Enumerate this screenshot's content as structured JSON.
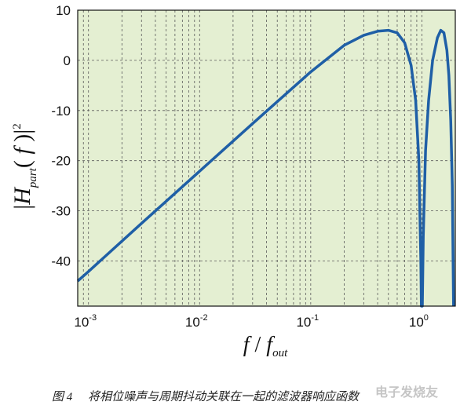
{
  "chart_data": {
    "type": "line",
    "x_scale": "log",
    "xlim": [
      0.0008,
      2.0
    ],
    "ylim": [
      -49,
      10
    ],
    "grid": true,
    "xlabel": "f / f out",
    "ylabel": "|H part ( f )| 2",
    "x_ticks": [
      {
        "base": "10",
        "exp": "-3",
        "value": 0.001
      },
      {
        "base": "10",
        "exp": "-2",
        "value": 0.01
      },
      {
        "base": "10",
        "exp": "-1",
        "value": 0.1
      },
      {
        "base": "10",
        "exp": "0",
        "value": 1.0
      }
    ],
    "y_ticks": [
      10,
      0,
      -10,
      -20,
      -30,
      -40
    ],
    "colors": {
      "line": "#1f5fa6",
      "plot_bg": "#e4efd2",
      "grid": "#5a5a5a"
    },
    "series": [
      {
        "values": [
          {
            "x": 0.0008,
            "y": -44
          },
          {
            "x": 0.001,
            "y": -42.1
          },
          {
            "x": 0.003,
            "y": -32.5
          },
          {
            "x": 0.01,
            "y": -22.1
          },
          {
            "x": 0.03,
            "y": -12.6
          },
          {
            "x": 0.1,
            "y": -2.3
          },
          {
            "x": 0.2,
            "y": 3
          },
          {
            "x": 0.3,
            "y": 5
          },
          {
            "x": 0.4,
            "y": 5.8
          },
          {
            "x": 0.5,
            "y": 6
          },
          {
            "x": 0.6,
            "y": 5.5
          },
          {
            "x": 0.7,
            "y": 3.5
          },
          {
            "x": 0.8,
            "y": -1
          },
          {
            "x": 0.88,
            "y": -8
          },
          {
            "x": 0.94,
            "y": -20
          },
          {
            "x": 0.98,
            "y": -40
          },
          {
            "x": 0.99,
            "y": -49
          },
          {
            "x": 1.01,
            "y": -49
          },
          {
            "x": 1.03,
            "y": -35
          },
          {
            "x": 1.08,
            "y": -18
          },
          {
            "x": 1.15,
            "y": -8
          },
          {
            "x": 1.25,
            "y": 0
          },
          {
            "x": 1.38,
            "y": 4.5
          },
          {
            "x": 1.48,
            "y": 6
          },
          {
            "x": 1.58,
            "y": 5.5
          },
          {
            "x": 1.68,
            "y": 2
          },
          {
            "x": 1.75,
            "y": -3
          },
          {
            "x": 1.82,
            "y": -12
          },
          {
            "x": 1.88,
            "y": -25
          },
          {
            "x": 1.93,
            "y": -49
          }
        ]
      }
    ]
  },
  "caption": {
    "figure": "图 4",
    "text": "将相位噪声与周期抖动关联在一起的滤波器响应函数"
  },
  "watermark": "电子发烧友"
}
